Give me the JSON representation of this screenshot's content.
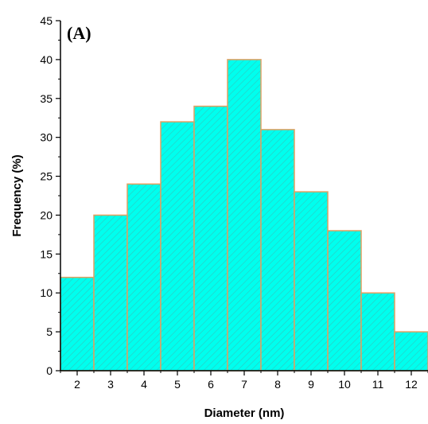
{
  "chart_data": {
    "type": "bar",
    "panel_label": "(A)",
    "xlabel": "Diameter (nm)",
    "ylabel": "Frequency (%)",
    "categories": [
      "2",
      "3",
      "4",
      "5",
      "6",
      "7",
      "8",
      "9",
      "10",
      "11",
      "12"
    ],
    "values": [
      12,
      20,
      24,
      32,
      34,
      40,
      31,
      23,
      18,
      10,
      5
    ],
    "ylim": [
      0,
      45
    ],
    "yticks": [
      "0",
      "5",
      "10",
      "15",
      "20",
      "25",
      "30",
      "35",
      "40",
      "45"
    ],
    "grid": false,
    "legend": "none",
    "bar_color": "#00FFEE",
    "bar_hatch_color": "#2FC8C0",
    "bar_edge_color": "#E0A060"
  }
}
